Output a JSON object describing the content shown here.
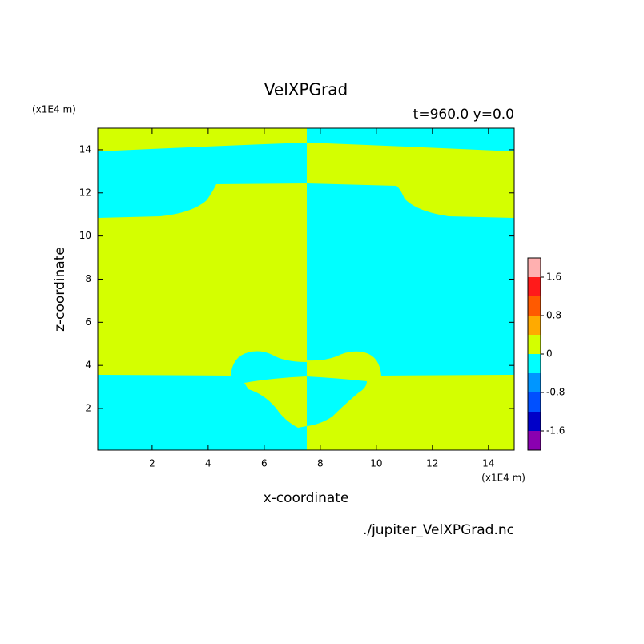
{
  "chart_data": {
    "type": "contour",
    "title": "VelXPGrad",
    "subtitle": "t=960.0 y=0.0",
    "x_label": "x-coordinate",
    "y_label": "z-coordinate",
    "x_unit": "(x1E4 m)",
    "y_unit": "(x1E4 m)",
    "source": "./jupiter_VelXPGrad.nc",
    "xlim": [
      0.06,
      14.92
    ],
    "ylim": [
      0.07,
      15.0
    ],
    "xticks": [
      2,
      4,
      6,
      8,
      10,
      12,
      14
    ],
    "yticks": [
      2,
      4,
      6,
      8,
      10,
      12,
      14
    ],
    "levels": [
      -2.0,
      -1.6,
      -1.2,
      -0.8,
      -0.4,
      0,
      0.4,
      0.8,
      1.2,
      1.6,
      2.0
    ],
    "colors": [
      "#8a00b0",
      "#0000c8",
      "#0050ff",
      "#0096ff",
      "#00ffff",
      "#d4ff00",
      "#ffaa00",
      "#ff5a00",
      "#ff1a1a",
      "#ffb0b0"
    ],
    "colorbar_ticks": [
      1.6,
      0.8,
      0,
      -0.8,
      -1.6
    ]
  }
}
